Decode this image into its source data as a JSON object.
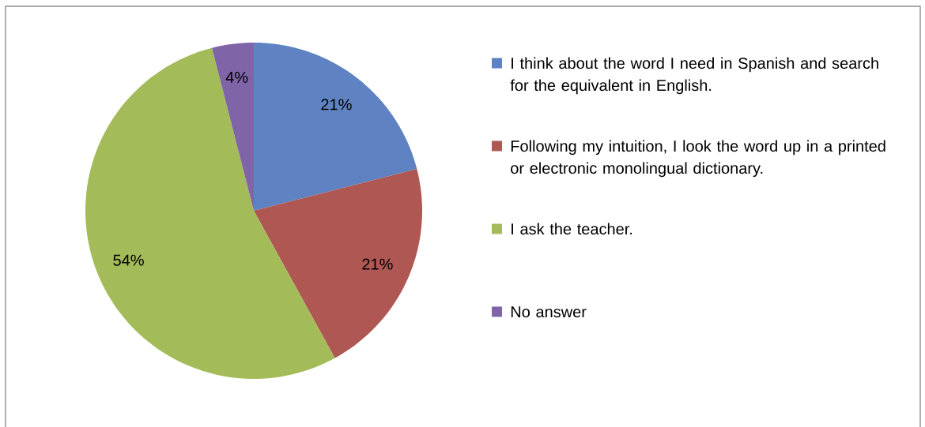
{
  "chart_data": {
    "type": "pie",
    "categories": [
      "I think about the word I need in Spanish and search for the equivalent in English.",
      "Following my intuition, I look the word up in a printed or electronic monolingual dictionary.",
      "I ask the teacher.",
      "No answer"
    ],
    "values": [
      21,
      21,
      54,
      4
    ],
    "colors": [
      "#5f83c2",
      "#ae5753",
      "#a3bb58",
      "#7f65a8"
    ],
    "value_labels": [
      "21%",
      "21%",
      "54%",
      "4%"
    ],
    "legend": "right"
  }
}
